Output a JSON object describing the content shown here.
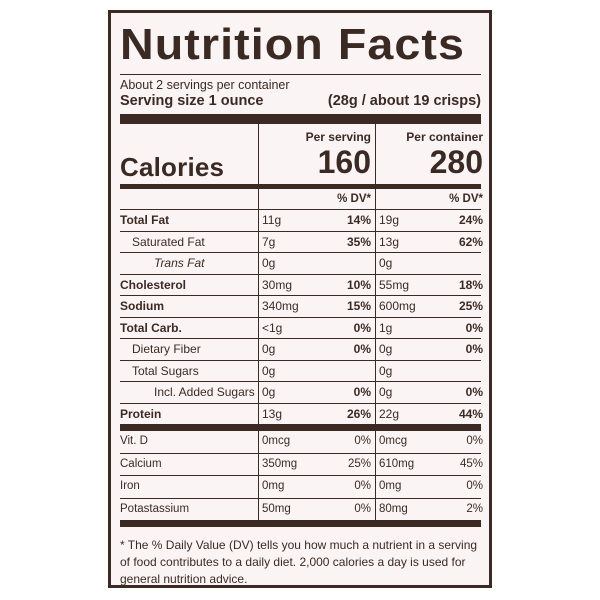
{
  "title": "Nutrition Facts",
  "servings_per_container": "About 2 servings per container",
  "serving_size_label": "Serving size 1 ounce",
  "serving_size_value": "(28g / about 19 crisps)",
  "col_per_serving": "Per serving",
  "col_per_container": "Per container",
  "calories_label": "Calories",
  "calories_serving": "160",
  "calories_container": "280",
  "dv_header": "% DV*",
  "nutrients": [
    {
      "name": "Total Fat",
      "s_amt": "11g",
      "s_dv": "14%",
      "c_amt": "19g",
      "c_dv": "24%"
    },
    {
      "name": "Saturated Fat",
      "s_amt": "7g",
      "s_dv": "35%",
      "c_amt": "13g",
      "c_dv": "62%"
    },
    {
      "name": "Trans Fat",
      "s_amt": "0g",
      "s_dv": "",
      "c_amt": "0g",
      "c_dv": ""
    },
    {
      "name": "Cholesterol",
      "s_amt": "30mg",
      "s_dv": "10%",
      "c_amt": "55mg",
      "c_dv": "18%"
    },
    {
      "name": "Sodium",
      "s_amt": "340mg",
      "s_dv": "15%",
      "c_amt": "600mg",
      "c_dv": "25%"
    },
    {
      "name": "Total Carb.",
      "s_amt": "<1g",
      "s_dv": "0%",
      "c_amt": "1g",
      "c_dv": "0%"
    },
    {
      "name": "Dietary Fiber",
      "s_amt": "0g",
      "s_dv": "0%",
      "c_amt": "0g",
      "c_dv": "0%"
    },
    {
      "name": "Total Sugars",
      "s_amt": "0g",
      "s_dv": "",
      "c_amt": "0g",
      "c_dv": ""
    },
    {
      "name": "Incl. Added Sugars",
      "s_amt": "0g",
      "s_dv": "0%",
      "c_amt": "0g",
      "c_dv": "0%"
    },
    {
      "name": "Protein",
      "s_amt": "13g",
      "s_dv": "26%",
      "c_amt": "22g",
      "c_dv": "44%"
    }
  ],
  "vitamins": [
    {
      "name": "Vit. D",
      "s_amt": "0mcg",
      "s_dv": "0%",
      "c_amt": "0mcg",
      "c_dv": "0%"
    },
    {
      "name": "Calcium",
      "s_amt": "350mg",
      "s_dv": "25%",
      "c_amt": "610mg",
      "c_dv": "45%"
    },
    {
      "name": "Iron",
      "s_amt": "0mg",
      "s_dv": "0%",
      "c_amt": "0mg",
      "c_dv": "0%"
    },
    {
      "name": "Potastassium",
      "s_amt": "50mg",
      "s_dv": "0%",
      "c_amt": "80mg",
      "c_dv": "2%"
    }
  ],
  "footnote": "* The % Daily Value (DV) tells you how much a nutrient in a serving of food contributes to a daily diet. 2,000 calories a day is used for general nutrition advice."
}
